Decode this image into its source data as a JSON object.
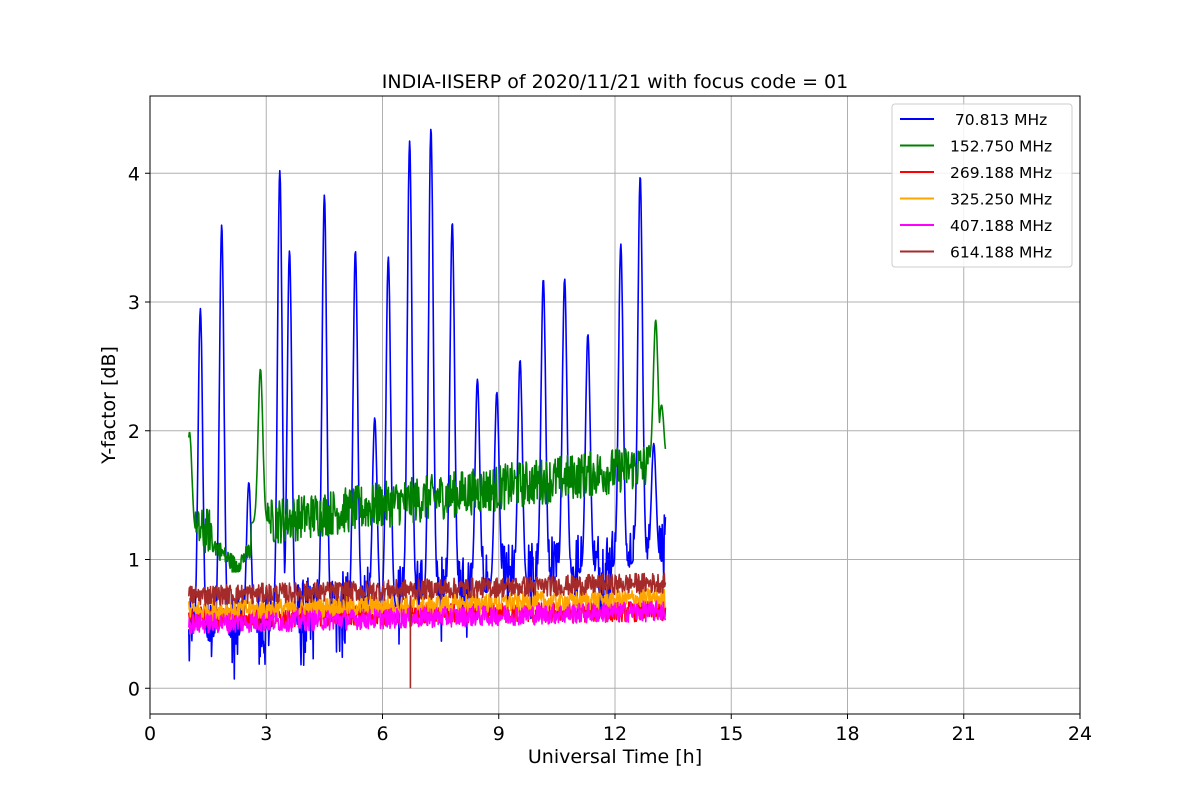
{
  "chart_data": {
    "type": "line",
    "title": "INDIA-IISERP of 2020/11/21 with focus code = 01",
    "xlabel": "Universal Time [h]",
    "ylabel": "Y-factor [dB]",
    "xlim": [
      0,
      24
    ],
    "ylim": [
      -0.2,
      4.6
    ],
    "xticks": [
      0,
      3,
      6,
      9,
      12,
      15,
      18,
      21,
      24
    ],
    "yticks": [
      0,
      1,
      2,
      3,
      4
    ],
    "grid": true,
    "legend_position": "top-right",
    "series": [
      {
        "name": " 70.813 MHz",
        "color": "#0000ff",
        "x_range": [
          1.0,
          13.3
        ],
        "base_start": 0.35,
        "base_end": 1.0,
        "noise": 0.35,
        "min": 0.0,
        "peaks": [
          [
            1.3,
            2.95
          ],
          [
            1.85,
            3.6
          ],
          [
            2.55,
            1.6
          ],
          [
            3.35,
            4.02
          ],
          [
            3.6,
            3.4
          ],
          [
            4.5,
            3.83
          ],
          [
            5.3,
            3.4
          ],
          [
            5.8,
            2.1
          ],
          [
            6.15,
            3.35
          ],
          [
            6.7,
            4.25
          ],
          [
            7.25,
            4.35
          ],
          [
            7.8,
            3.62
          ],
          [
            8.45,
            2.4
          ],
          [
            8.95,
            2.3
          ],
          [
            9.55,
            2.55
          ],
          [
            10.15,
            3.18
          ],
          [
            10.7,
            3.18
          ],
          [
            11.3,
            2.75
          ],
          [
            12.15,
            3.45
          ],
          [
            12.65,
            3.98
          ],
          [
            13.0,
            1.9
          ]
        ]
      },
      {
        "name": "152.750 MHz",
        "color": "#008000",
        "x_range": [
          1.0,
          13.3
        ],
        "base_start": 1.2,
        "base_end": 1.75,
        "noise": 0.18,
        "dip": [
          2.2,
          0.95
        ],
        "peaks": [
          [
            1.02,
            1.99
          ],
          [
            2.85,
            2.48
          ],
          [
            13.05,
            2.86
          ],
          [
            13.2,
            2.2
          ]
        ]
      },
      {
        "name": "269.188 MHz",
        "color": "#ff0000",
        "x_range": [
          1.0,
          13.3
        ],
        "base_start": 0.55,
        "base_end": 0.6,
        "noise": 0.08,
        "peaks": []
      },
      {
        "name": "325.250 MHz",
        "color": "#ffa500",
        "x_range": [
          1.0,
          13.3
        ],
        "base_start": 0.6,
        "base_end": 0.7,
        "noise": 0.08,
        "peaks": []
      },
      {
        "name": "407.188 MHz",
        "color": "#ff00ff",
        "x_range": [
          1.0,
          13.3
        ],
        "base_start": 0.5,
        "base_end": 0.6,
        "noise": 0.08,
        "peaks": []
      },
      {
        "name": "614.188 MHz",
        "color": "#a52a2a",
        "x_range": [
          1.0,
          13.3
        ],
        "base_start": 0.72,
        "base_end": 0.82,
        "noise": 0.08,
        "spike_down": [
          6.72,
          0.0
        ],
        "peaks": []
      }
    ]
  }
}
